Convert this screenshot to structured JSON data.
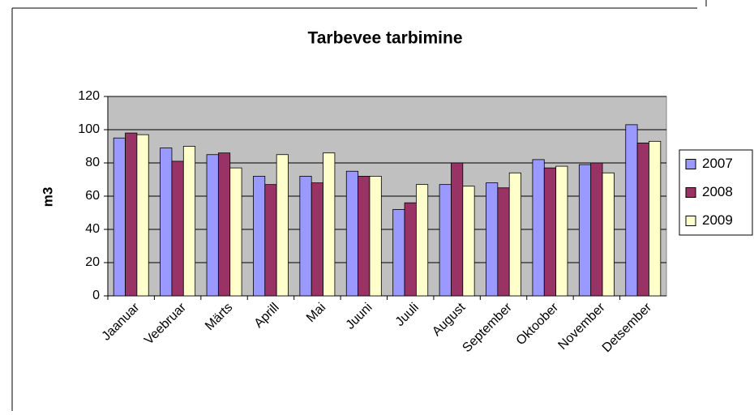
{
  "chart_data": {
    "type": "bar",
    "title": "Tarbevee tarbimine",
    "y_label": "m3",
    "categories": [
      "Jaanuar",
      "Veebruar",
      "Märts",
      "Aprill",
      "Mai",
      "Juuni",
      "Juuli",
      "August",
      "September",
      "Oktoober",
      "November",
      "Detsember"
    ],
    "series": [
      {
        "name": "2007",
        "color": "#9999ff",
        "values": [
          95,
          89,
          85,
          72,
          72,
          75,
          52,
          67,
          68,
          82,
          79,
          103
        ]
      },
      {
        "name": "2008",
        "color": "#993366",
        "values": [
          98,
          81,
          86,
          67,
          68,
          72,
          56,
          80,
          65,
          77,
          80,
          92
        ]
      },
      {
        "name": "2009",
        "color": "#ffffcc",
        "values": [
          97,
          90,
          77,
          85,
          86,
          72,
          67,
          66,
          74,
          78,
          74,
          93
        ]
      }
    ],
    "ylim": [
      0,
      120
    ],
    "yticks": [
      0,
      20,
      40,
      60,
      80,
      100,
      120
    ],
    "grid": true,
    "legend": "right",
    "plot_background": "#c0c0c0"
  }
}
